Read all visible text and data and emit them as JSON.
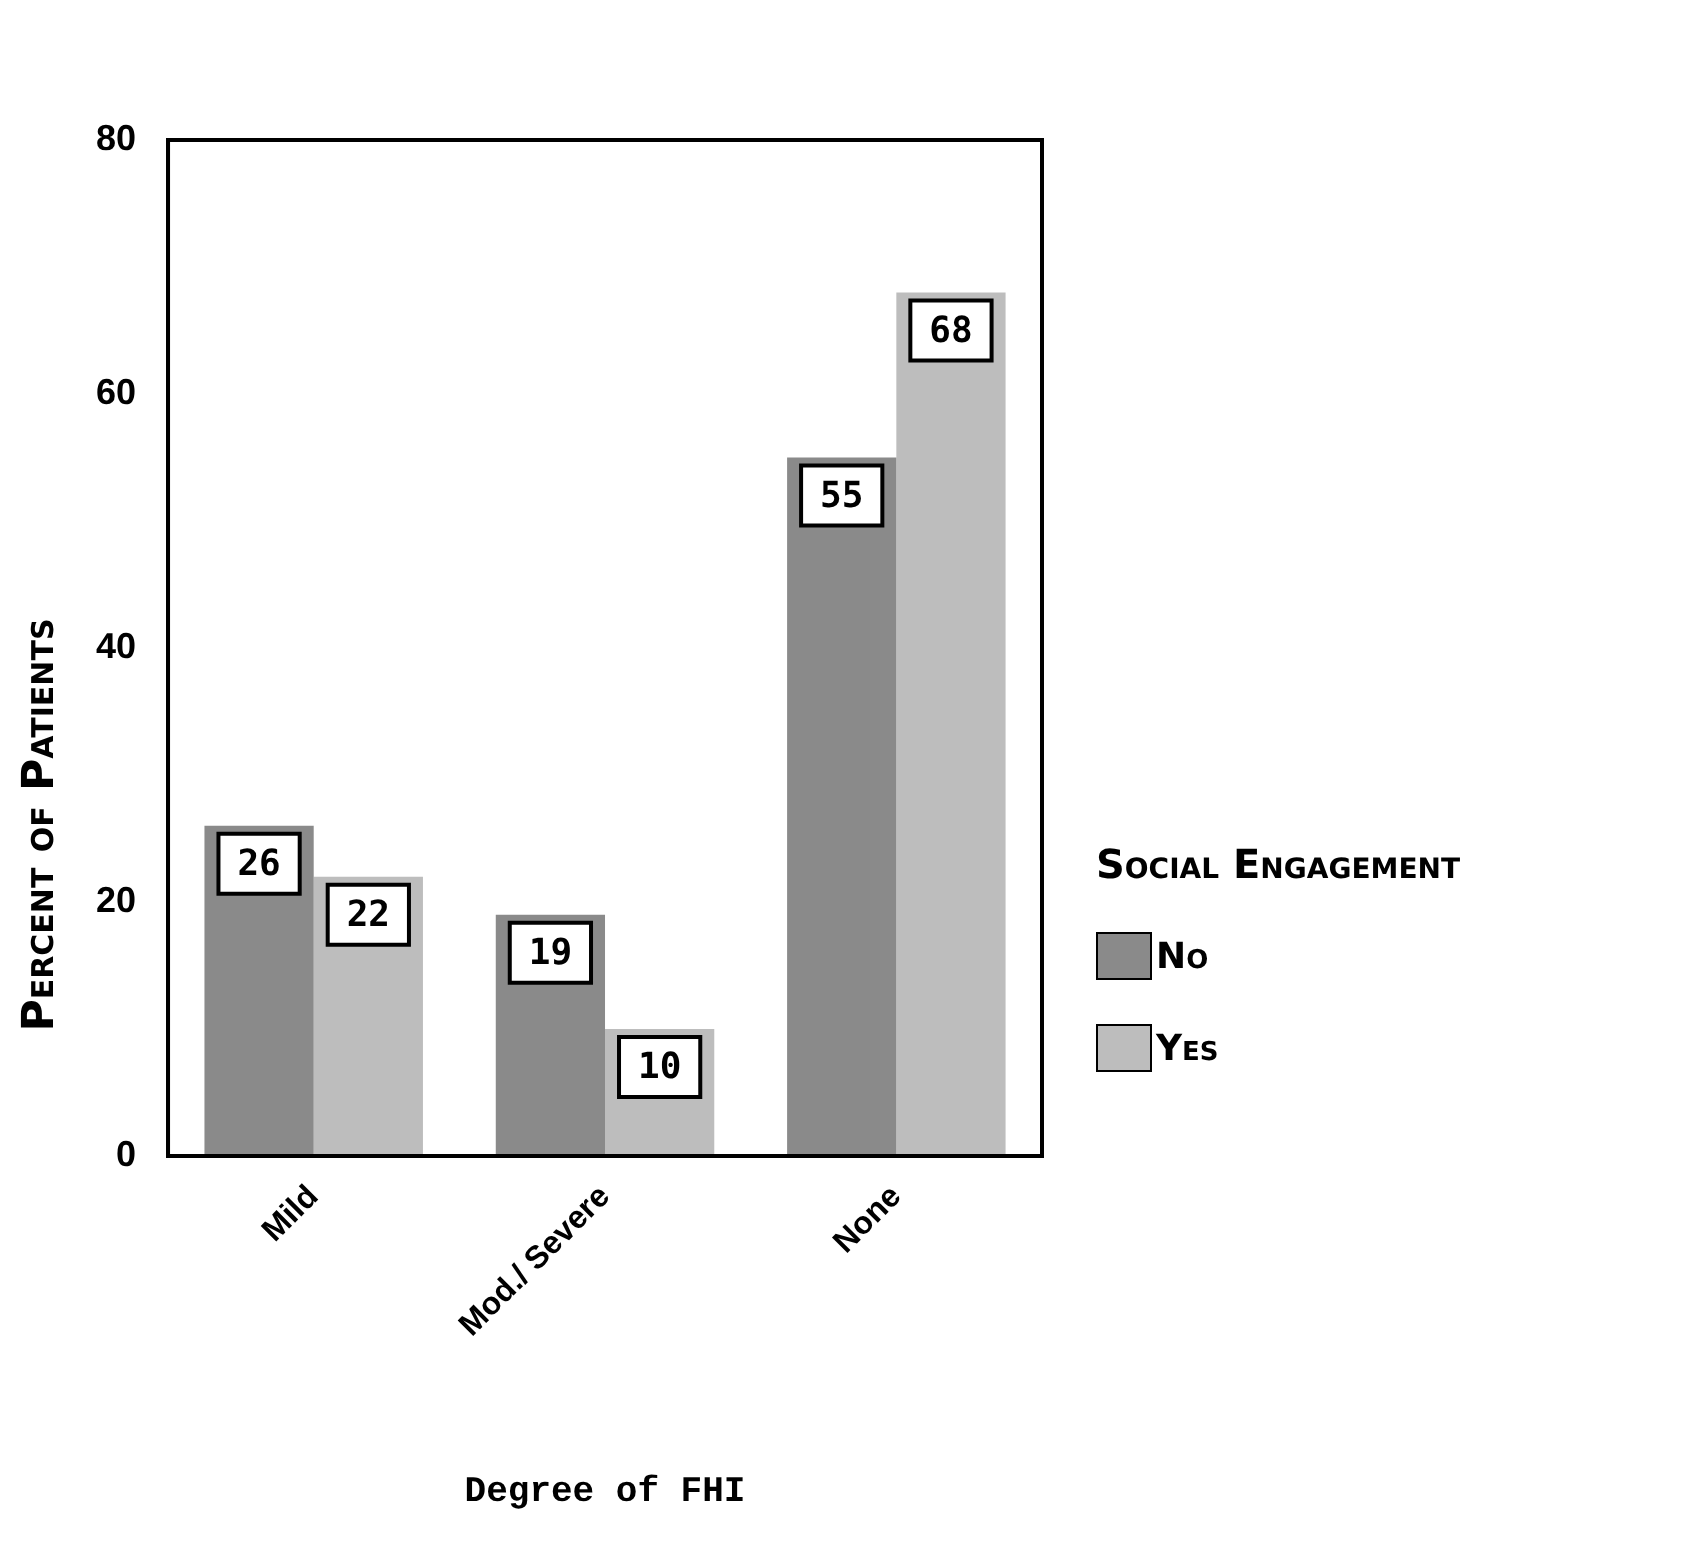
{
  "chart_data": {
    "type": "bar",
    "xlabel": "Degree of FHI",
    "ylabel": "Percent of Patients",
    "legend_title": "Social Engagement",
    "legend": "right",
    "categories": [
      "Mild",
      "Mod./ Severe",
      "None"
    ],
    "series": [
      {
        "name": "No",
        "color": "#8a8a8a",
        "values": [
          26,
          19,
          55
        ]
      },
      {
        "name": "Yes",
        "color": "#bdbdbd",
        "values": [
          22,
          10,
          68
        ]
      }
    ],
    "ylim": [
      0,
      80
    ],
    "yticks": [
      0,
      20,
      40,
      60,
      80
    ],
    "grid": false,
    "data_labels": true
  }
}
